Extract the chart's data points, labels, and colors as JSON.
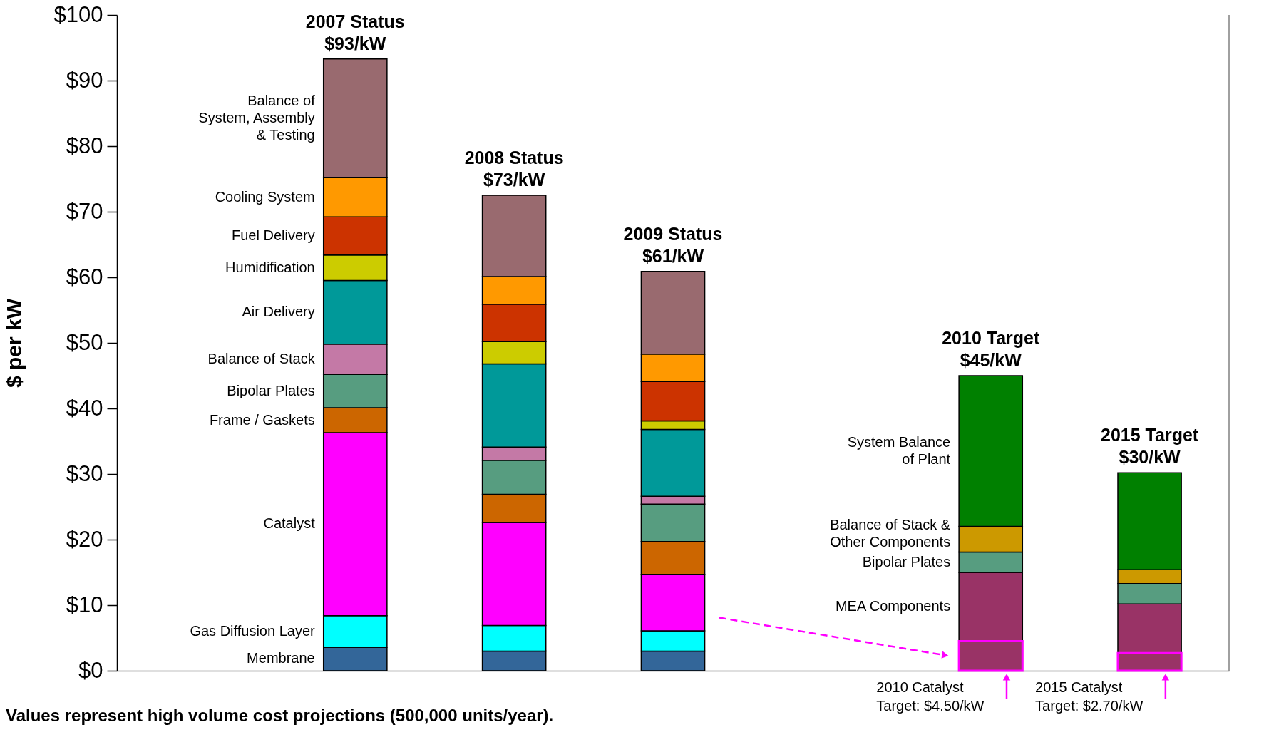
{
  "chart_data": {
    "type": "bar",
    "stacked": true,
    "ylabel": "$ per kW",
    "categories": [
      null,
      null,
      null,
      null,
      null,
      null,
      null
    ],
    "totals": [
      null,
      "$93/kW",
      "$73/kW",
      "$61/kW",
      null,
      "$45/kW",
      "$30/kW"
    ],
    "series": [
      {
        "name": "Membrane",
        "color": "#336699",
        "values": [
          null,
          3.6,
          3.0,
          3.0,
          null,
          null,
          null
        ]
      },
      {
        "name": "Gas Diffusion Layer",
        "color": "#00ffff",
        "values": [
          null,
          4.8,
          3.9,
          3.1,
          null,
          null,
          null
        ]
      },
      {
        "name": "Catalyst",
        "color": "#ff00ff",
        "values": [
          null,
          27.9,
          15.7,
          8.6,
          null,
          null,
          null
        ]
      },
      {
        "name": "Frame / Gaskets",
        "color": "#cc6600",
        "values": [
          null,
          3.8,
          4.3,
          5.0,
          null,
          null,
          null
        ]
      },
      {
        "name": "Bipolar Plates",
        "color": "#579d80",
        "values": [
          null,
          5.1,
          5.2,
          5.7,
          null,
          null,
          null
        ]
      },
      {
        "name": "Balance of Stack",
        "color": "#c479a6",
        "values": [
          null,
          4.6,
          2.0,
          1.2,
          null,
          null,
          null
        ]
      },
      {
        "name": "Air Delivery",
        "color": "#009999",
        "values": [
          null,
          9.7,
          12.7,
          10.2,
          null,
          null,
          null
        ]
      },
      {
        "name": "Humidification",
        "color": "#cccc00",
        "values": [
          null,
          3.9,
          3.4,
          1.3,
          null,
          null,
          null
        ]
      },
      {
        "name": "Fuel Delivery",
        "color": "#cc3300",
        "values": [
          null,
          5.8,
          5.7,
          6.0,
          null,
          null,
          null
        ]
      },
      {
        "name": "Cooling System",
        "color": "#ff9900",
        "values": [
          null,
          6.0,
          4.2,
          4.2,
          null,
          null,
          null
        ]
      },
      {
        "name": "Balance of System, Assembly & Testing",
        "color": "#996a6f",
        "values": [
          null,
          18.1,
          12.4,
          12.6,
          null,
          null,
          null
        ]
      },
      {
        "color": "#993366",
        "values": [
          null,
          null,
          null,
          null,
          null,
          4.5,
          2.7
        ],
        "value_labels": [
          null,
          null,
          null,
          null,
          null,
          "2010 Catalyst Target: $4.50/kW",
          "2015 Catalyst Target: $2.70/kW"
        ]
      },
      {
        "name": "MEA Components",
        "color": "#993366",
        "values": [
          null,
          null,
          null,
          null,
          null,
          10.5,
          7.5
        ]
      },
      {
        "name": "Bipolar Plates",
        "color": "#579d80",
        "values": [
          null,
          null,
          null,
          null,
          null,
          3.1,
          3.1
        ]
      },
      {
        "name": "Balance of Stack & Other Components",
        "color": "#cc9900",
        "values": [
          null,
          null,
          null,
          null,
          null,
          3.9,
          2.1
        ]
      },
      {
        "name": "System Balance of Plant",
        "color": "#008000",
        "values": [
          null,
          null,
          null,
          null,
          null,
          23.0,
          14.8
        ]
      }
    ],
    "ylim": [
      0,
      100
    ],
    "yticks": [
      {
        "value": 0,
        "label": "$0"
      },
      {
        "value": 10,
        "label": "$10"
      },
      {
        "value": 20,
        "label": "$20"
      },
      {
        "value": 30,
        "label": "$30"
      },
      {
        "value": 40,
        "label": "$40"
      },
      {
        "value": 50,
        "label": "$50"
      },
      {
        "value": 60,
        "label": "$60"
      },
      {
        "value": 70,
        "label": "$70"
      },
      {
        "value": 80,
        "label": "$80"
      },
      {
        "value": 90,
        "label": "$90"
      },
      {
        "value": 100,
        "label": "$100"
      }
    ],
    "annotations": [
      {
        "text": "2007 Status",
        "y": 93.3
      },
      {
        "text": "2008 Status",
        "y": 72.5
      },
      {
        "text": "2009 Status",
        "y": 60.9
      },
      {
        "text": "2010 Target",
        "y": 45.0
      },
      {
        "text": "2015 Target",
        "y": 30.2
      },
      "Values represent high volume cost projections (500,000 units/year)."
    ]
  }
}
